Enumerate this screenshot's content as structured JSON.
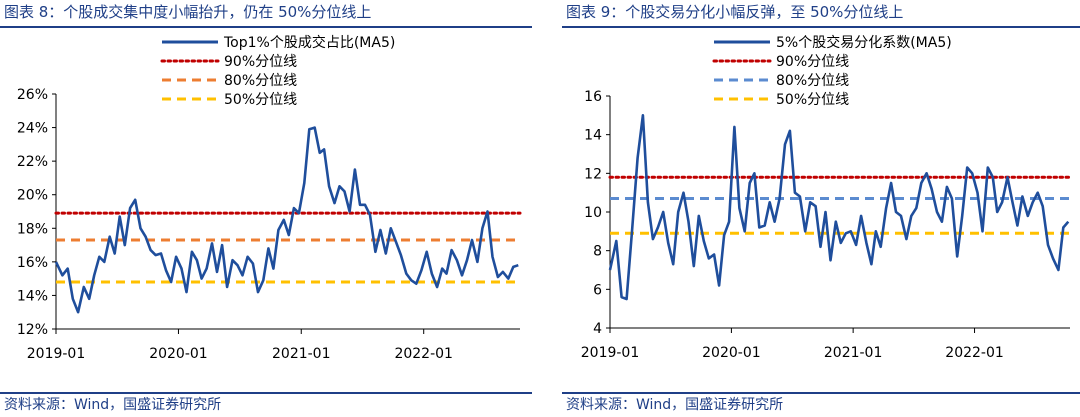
{
  "figures": [
    {
      "title": "图表 8：个股成交集中度小幅抬升，仍在 50%分位线上",
      "source": "资料来源：Wind，国盛证券研究所"
    },
    {
      "title": "图表 9：个股交易分化小幅反弹，至 50%分位线上",
      "source": "资料来源：Wind，国盛证券研究所"
    }
  ],
  "chart_data": [
    {
      "type": "line",
      "title": "",
      "xlabel": "",
      "ylabel": "",
      "x_ticks": [
        "2019-01",
        "2020-01",
        "2021-01",
        "2022-01"
      ],
      "y_ticks": [
        "12%",
        "14%",
        "16%",
        "18%",
        "20%",
        "22%",
        "24%",
        "26%"
      ],
      "ylim": [
        12,
        26
      ],
      "xlim": [
        "2019-01-01",
        "2022-10-15"
      ],
      "grid": false,
      "legend_position": "top-right",
      "series": [
        {
          "name": "Top1%个股成交占比(MA5)",
          "color": "#1f4e9c",
          "style": "solid",
          "x": [
            "2019-01-01",
            "2019-01-20",
            "2019-02-05",
            "2019-02-20",
            "2019-03-08",
            "2019-03-25",
            "2019-04-10",
            "2019-04-25",
            "2019-05-10",
            "2019-05-25",
            "2019-06-10",
            "2019-06-25",
            "2019-07-10",
            "2019-07-25",
            "2019-08-10",
            "2019-08-25",
            "2019-09-10",
            "2019-09-25",
            "2019-10-10",
            "2019-10-25",
            "2019-11-10",
            "2019-11-25",
            "2019-12-10",
            "2019-12-25",
            "2020-01-10",
            "2020-01-25",
            "2020-02-10",
            "2020-02-25",
            "2020-03-10",
            "2020-03-25",
            "2020-04-10",
            "2020-04-25",
            "2020-05-10",
            "2020-05-25",
            "2020-06-10",
            "2020-06-25",
            "2020-07-10",
            "2020-07-25",
            "2020-08-10",
            "2020-08-25",
            "2020-09-10",
            "2020-09-25",
            "2020-10-10",
            "2020-10-25",
            "2020-11-10",
            "2020-11-25",
            "2020-12-10",
            "2020-12-25",
            "2021-01-10",
            "2021-01-25",
            "2021-02-10",
            "2021-02-25",
            "2021-03-10",
            "2021-03-25",
            "2021-04-10",
            "2021-04-25",
            "2021-05-10",
            "2021-05-25",
            "2021-06-10",
            "2021-06-25",
            "2021-07-10",
            "2021-07-25",
            "2021-08-10",
            "2021-08-25",
            "2021-09-10",
            "2021-09-25",
            "2021-10-10",
            "2021-10-25",
            "2021-11-10",
            "2021-11-25",
            "2021-12-10",
            "2021-12-25",
            "2022-01-10",
            "2022-01-25",
            "2022-02-10",
            "2022-02-25",
            "2022-03-10",
            "2022-03-25",
            "2022-04-10",
            "2022-04-25",
            "2022-05-10",
            "2022-05-25",
            "2022-06-10",
            "2022-06-25",
            "2022-07-10",
            "2022-07-25",
            "2022-08-10",
            "2022-08-25",
            "2022-09-10",
            "2022-09-25",
            "2022-10-10"
          ],
          "y": [
            16.0,
            15.2,
            15.6,
            13.8,
            13.0,
            14.5,
            13.8,
            15.2,
            16.3,
            16.0,
            17.5,
            16.5,
            18.7,
            17.0,
            19.2,
            19.7,
            18.0,
            17.5,
            16.7,
            16.4,
            16.5,
            15.5,
            14.8,
            16.3,
            15.6,
            14.2,
            16.6,
            16.1,
            15.0,
            15.6,
            17.1,
            15.4,
            17.0,
            14.5,
            16.1,
            15.8,
            15.2,
            16.3,
            15.9,
            14.2,
            14.9,
            16.8,
            15.6,
            17.9,
            18.5,
            17.6,
            19.2,
            18.9,
            20.7,
            23.9,
            24.0,
            22.5,
            22.7,
            20.5,
            19.5,
            20.5,
            20.2,
            19.0,
            21.5,
            19.4,
            19.4,
            18.8,
            16.6,
            17.9,
            16.5,
            18.0,
            17.2,
            16.4,
            15.3,
            14.9,
            14.7,
            15.5,
            16.6,
            15.3,
            14.5,
            15.6,
            15.3,
            16.7,
            16.1,
            15.2,
            16.1,
            17.3,
            16.0,
            18.0,
            19.0,
            16.3,
            15.1,
            15.4,
            15.0,
            15.7,
            15.8
          ]
        },
        {
          "name": "90%分位线",
          "color": "#c00000",
          "style": "dotted",
          "value": 18.9
        },
        {
          "name": "80%分位线",
          "color": "#ed7d31",
          "style": "dashed",
          "value": 17.3
        },
        {
          "name": "50%分位线",
          "color": "#ffc000",
          "style": "dashed",
          "value": 14.8
        }
      ]
    },
    {
      "type": "line",
      "title": "",
      "xlabel": "",
      "ylabel": "",
      "x_ticks": [
        "2019-01",
        "2020-01",
        "2021-01",
        "2022-01"
      ],
      "y_ticks": [
        "4",
        "6",
        "8",
        "10",
        "12",
        "14",
        "16"
      ],
      "ylim": [
        4,
        16
      ],
      "xlim": [
        "2019-01-01",
        "2022-10-15"
      ],
      "grid": false,
      "legend_position": "top-right",
      "series": [
        {
          "name": "5%个股交易分化系数(MA5)",
          "color": "#1f4e9c",
          "style": "solid",
          "x": [
            "2019-01-01",
            "2019-01-20",
            "2019-02-05",
            "2019-02-20",
            "2019-03-08",
            "2019-03-25",
            "2019-04-10",
            "2019-04-25",
            "2019-05-10",
            "2019-05-25",
            "2019-06-10",
            "2019-06-25",
            "2019-07-10",
            "2019-07-25",
            "2019-08-10",
            "2019-08-25",
            "2019-09-10",
            "2019-09-25",
            "2019-10-10",
            "2019-10-25",
            "2019-11-10",
            "2019-11-25",
            "2019-12-10",
            "2019-12-25",
            "2020-01-10",
            "2020-01-25",
            "2020-02-10",
            "2020-02-25",
            "2020-03-10",
            "2020-03-25",
            "2020-04-10",
            "2020-04-25",
            "2020-05-10",
            "2020-05-25",
            "2020-06-10",
            "2020-06-25",
            "2020-07-10",
            "2020-07-25",
            "2020-08-10",
            "2020-08-25",
            "2020-09-10",
            "2020-09-25",
            "2020-10-10",
            "2020-10-25",
            "2020-11-10",
            "2020-11-25",
            "2020-12-10",
            "2020-12-25",
            "2021-01-10",
            "2021-01-25",
            "2021-02-10",
            "2021-02-25",
            "2021-03-10",
            "2021-03-25",
            "2021-04-10",
            "2021-04-25",
            "2021-05-10",
            "2021-05-25",
            "2021-06-10",
            "2021-06-25",
            "2021-07-10",
            "2021-07-25",
            "2021-08-10",
            "2021-08-25",
            "2021-09-10",
            "2021-09-25",
            "2021-10-10",
            "2021-10-25",
            "2021-11-10",
            "2021-11-25",
            "2021-12-10",
            "2021-12-25",
            "2022-01-10",
            "2022-01-25",
            "2022-02-10",
            "2022-02-25",
            "2022-03-10",
            "2022-03-25",
            "2022-04-10",
            "2022-04-25",
            "2022-05-10",
            "2022-05-25",
            "2022-06-10",
            "2022-06-25",
            "2022-07-10",
            "2022-07-25",
            "2022-08-10",
            "2022-08-25",
            "2022-09-10",
            "2022-09-25",
            "2022-10-10"
          ],
          "y": [
            7.0,
            8.5,
            5.6,
            5.5,
            9.0,
            12.8,
            15.0,
            10.5,
            8.6,
            9.2,
            10.0,
            8.4,
            7.3,
            10.0,
            11.0,
            9.5,
            7.2,
            9.8,
            8.5,
            7.6,
            7.8,
            6.2,
            8.8,
            9.5,
            14.4,
            10.2,
            9.0,
            11.5,
            12.0,
            9.2,
            9.3,
            10.5,
            9.5,
            10.7,
            13.5,
            14.2,
            11.0,
            10.8,
            9.0,
            10.5,
            10.3,
            8.2,
            10.0,
            7.5,
            9.5,
            8.4,
            8.9,
            9.0,
            8.3,
            9.8,
            8.4,
            7.3,
            9.0,
            8.2,
            10.2,
            11.5,
            10.0,
            9.8,
            8.6,
            9.8,
            10.2,
            11.5,
            12.0,
            11.2,
            10.0,
            9.5,
            11.3,
            10.7,
            7.7,
            9.8,
            12.3,
            12.0,
            11.0,
            9.0,
            12.3,
            11.8,
            10.0,
            10.5,
            11.8,
            10.5,
            9.3,
            10.8,
            9.8,
            10.5,
            11.0,
            10.3,
            8.3,
            7.6,
            7.0,
            9.2,
            9.5
          ]
        },
        {
          "name": "90%分位线",
          "color": "#c00000",
          "style": "dotted",
          "value": 11.8
        },
        {
          "name": "80%分位线",
          "color": "#5b8bd0",
          "style": "dashed",
          "value": 10.7
        },
        {
          "name": "50%分位线",
          "color": "#ffc000",
          "style": "dashed",
          "value": 8.9
        }
      ]
    }
  ]
}
